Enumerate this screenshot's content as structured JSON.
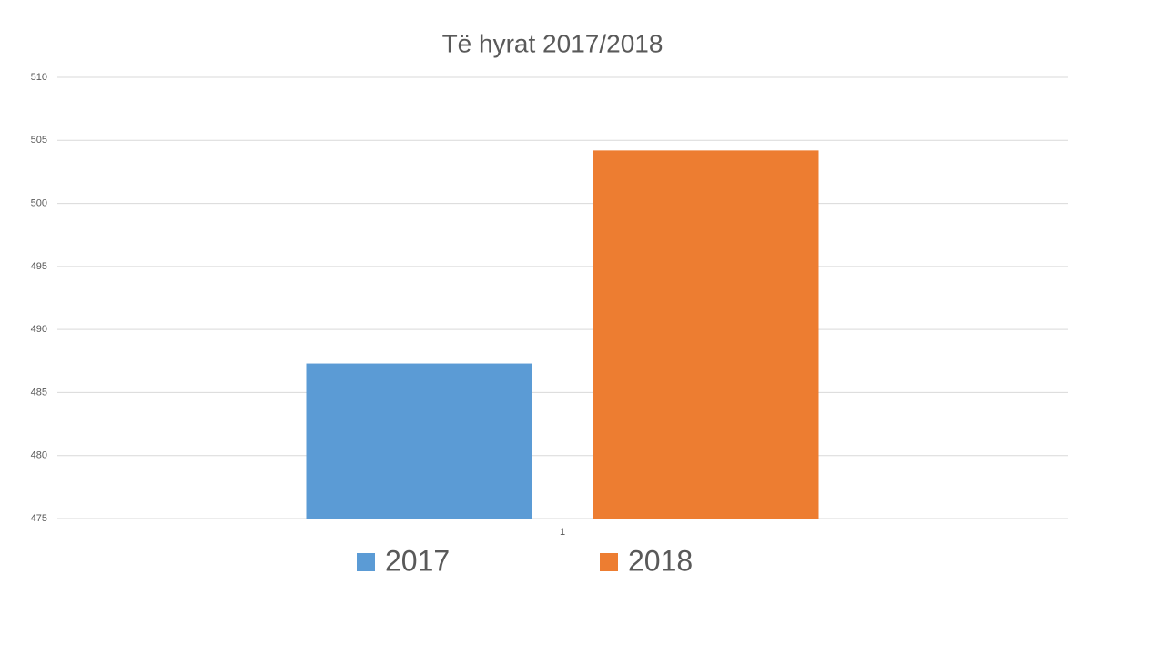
{
  "chart_data": {
    "type": "bar",
    "title": "Të hyrat 2017/2018",
    "categories": [
      "1"
    ],
    "series": [
      {
        "name": "2017",
        "color": "#5b9bd5",
        "values": [
          487.3
        ]
      },
      {
        "name": "2018",
        "color": "#ed7d31",
        "values": [
          504.2
        ]
      }
    ],
    "ylim": [
      475,
      510
    ],
    "yticks": [
      475,
      480,
      485,
      490,
      495,
      500,
      505,
      510
    ],
    "grid": true,
    "legend": "bottom"
  }
}
